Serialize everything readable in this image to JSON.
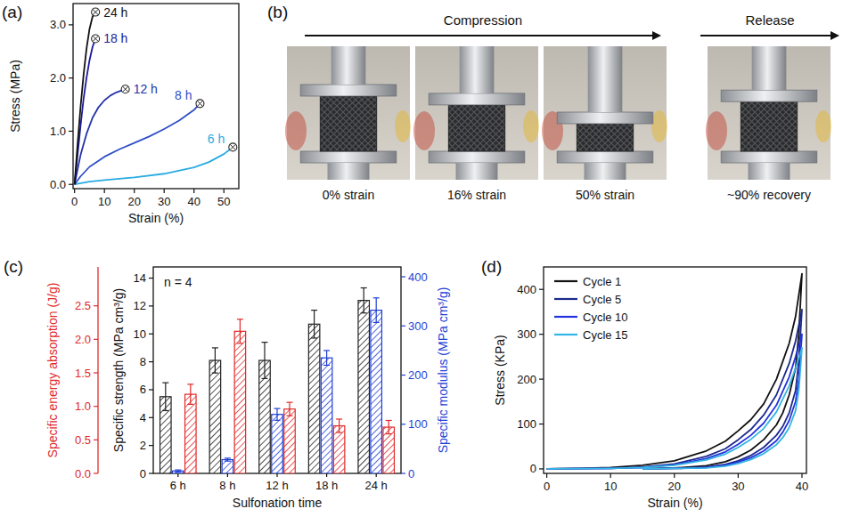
{
  "chart_data": [
    {
      "panel": "(a)",
      "type": "line",
      "x_label": "Strain (%)",
      "y_label": "Stress (MPa)",
      "xlim": [
        -0.5,
        55
      ],
      "xticks": [
        0,
        10,
        20,
        30,
        40,
        50
      ],
      "ylim": [
        -0.08,
        3.4
      ],
      "yticks": [
        {
          "value": 0,
          "label": "0.0"
        },
        {
          "value": 1,
          "label": "1.0"
        },
        {
          "value": 2,
          "label": "2.0"
        },
        {
          "value": 3,
          "label": "3.0"
        }
      ],
      "grid": false,
      "marker": "circle-x",
      "series": [
        {
          "name": "6 h",
          "color": "#29abe2",
          "x": [
            0,
            5,
            10,
            20,
            30,
            40,
            45,
            50,
            53
          ],
          "values": [
            0,
            0.05,
            0.08,
            0.13,
            0.2,
            0.32,
            0.42,
            0.57,
            0.7
          ]
        },
        {
          "name": "8 h",
          "color": "#2f4fc8",
          "x": [
            0,
            2,
            5,
            10,
            15,
            20,
            25,
            30,
            35,
            40,
            42
          ],
          "values": [
            0,
            0.15,
            0.33,
            0.52,
            0.66,
            0.78,
            0.9,
            1.04,
            1.2,
            1.4,
            1.52
          ]
        },
        {
          "name": "12 h",
          "color": "#2433a8",
          "x": [
            0,
            1,
            2,
            4,
            6,
            8,
            10,
            12,
            14,
            16,
            17
          ],
          "values": [
            0,
            0.28,
            0.55,
            0.95,
            1.25,
            1.45,
            1.58,
            1.67,
            1.73,
            1.77,
            1.79
          ]
        },
        {
          "name": "18 h",
          "color": "#1a1a9a",
          "x": [
            0,
            1,
            2,
            3,
            4,
            5,
            6,
            7
          ],
          "values": [
            0,
            0.55,
            1.1,
            1.6,
            2.0,
            2.33,
            2.58,
            2.74
          ]
        },
        {
          "name": "24 h",
          "color": "#111111",
          "x": [
            0,
            1,
            2,
            3,
            4,
            5,
            6,
            7
          ],
          "values": [
            0,
            0.75,
            1.45,
            2.05,
            2.55,
            2.92,
            3.15,
            3.24
          ]
        }
      ]
    },
    {
      "panel": "(c)",
      "type": "bar",
      "x_label": "Sulfonation time",
      "annotation": "n = 4",
      "categories": [
        "6 h",
        "8 h",
        "12 h",
        "18 h",
        "24 h"
      ],
      "y_label": "Specific strength (MPa cm³/g)",
      "ylim": [
        0,
        14.8
      ],
      "yticks": [
        0,
        2,
        4,
        6,
        8,
        10,
        12,
        14
      ],
      "y2_label": "Specific modulus (MPa cm³/g)",
      "y2lim": [
        0,
        420
      ],
      "y2ticks": [
        0,
        100,
        200,
        300,
        400
      ],
      "y3_label": "Specific energy absorption (J/g)",
      "y3lim": [
        0,
        3.08
      ],
      "y3ticks": [
        {
          "value": 0,
          "label": "0.0"
        },
        {
          "value": 0.5,
          "label": "0.5"
        },
        {
          "value": 1,
          "label": "1.0"
        },
        {
          "value": 1.5,
          "label": "1.5"
        },
        {
          "value": 2,
          "label": "2.0"
        },
        {
          "value": 2.5,
          "label": "2.5"
        }
      ],
      "grid": false,
      "series": [
        {
          "axis": "y",
          "color": "#222222",
          "values": [
            5.5,
            8.1,
            8.1,
            10.7,
            12.4
          ],
          "errors": [
            1.0,
            0.9,
            1.3,
            1.0,
            0.9
          ]
        },
        {
          "axis": "y2",
          "color": "#1f3fd6",
          "values": [
            5,
            28,
            120,
            235,
            332
          ],
          "errors": [
            2,
            3,
            12,
            15,
            25
          ]
        },
        {
          "axis": "y3",
          "color": "#e02a2a",
          "values": [
            1.18,
            2.12,
            0.96,
            0.71,
            0.69
          ],
          "errors": [
            0.15,
            0.18,
            0.1,
            0.1,
            0.1
          ]
        }
      ]
    },
    {
      "panel": "(d)",
      "type": "line",
      "x_label": "Strain (%)",
      "y_label": "Stress (KPa)",
      "xlim": [
        -0.5,
        40.7
      ],
      "xticks": [
        0,
        10,
        20,
        30,
        40
      ],
      "ylim": [
        -10,
        450
      ],
      "yticks": [
        0,
        100,
        200,
        300,
        400
      ],
      "grid": false,
      "legend": "upper left",
      "series": [
        {
          "name": "Cycle 1",
          "color": "#111111",
          "x": [
            0,
            5,
            10,
            15,
            20,
            25,
            28,
            30,
            32,
            34,
            36,
            38,
            39,
            40,
            39.5,
            39,
            38,
            37,
            36,
            34,
            32,
            30,
            28,
            25,
            20,
            15
          ],
          "values": [
            0,
            1,
            3,
            8,
            18,
            40,
            62,
            85,
            110,
            145,
            200,
            280,
            340,
            435,
            300,
            225,
            165,
            125,
            98,
            65,
            42,
            27,
            16,
            7,
            2,
            0
          ]
        },
        {
          "name": "Cycle 5",
          "color": "#1c2a8c",
          "x": [
            0,
            10,
            15,
            20,
            25,
            28,
            30,
            32,
            34,
            36,
            38,
            39,
            40,
            39.5,
            39,
            38,
            37,
            36,
            34,
            32,
            30,
            28,
            25,
            20,
            15
          ],
          "values": [
            0,
            1,
            4,
            11,
            28,
            45,
            65,
            88,
            120,
            165,
            235,
            285,
            355,
            240,
            175,
            125,
            95,
            75,
            48,
            30,
            18,
            10,
            4,
            1,
            0
          ]
        },
        {
          "name": "Cycle 10",
          "color": "#2233dd",
          "x": [
            0,
            10,
            15,
            20,
            25,
            28,
            30,
            32,
            34,
            36,
            38,
            39,
            40,
            39.5,
            39,
            38,
            37,
            36,
            34,
            32,
            30,
            28,
            25,
            20,
            15
          ],
          "values": [
            0,
            1,
            3,
            9,
            23,
            38,
            55,
            75,
            102,
            142,
            205,
            250,
            300,
            200,
            150,
            108,
            82,
            63,
            40,
            25,
            15,
            8,
            3,
            1,
            0
          ]
        },
        {
          "name": "Cycle 15",
          "color": "#33b5e5",
          "x": [
            0,
            10,
            15,
            20,
            25,
            28,
            30,
            32,
            34,
            36,
            38,
            39,
            40,
            39.5,
            39,
            38,
            37,
            36,
            34,
            32,
            30,
            28,
            25,
            20,
            15
          ],
          "values": [
            0,
            1,
            3,
            8,
            20,
            33,
            48,
            66,
            90,
            127,
            185,
            225,
            270,
            175,
            130,
            92,
            70,
            54,
            34,
            21,
            12,
            6,
            2,
            1,
            0
          ]
        }
      ]
    }
  ],
  "photo_panel": {
    "panel": "(b)",
    "arrows": [
      {
        "label": "Compression"
      },
      {
        "label": "Release"
      }
    ],
    "frames": [
      {
        "label": "0% strain",
        "strain": 0
      },
      {
        "label": "16% strain",
        "strain": 16
      },
      {
        "label": "50% strain",
        "strain": 50
      },
      {
        "label": "~90% recovery",
        "recovery": 90
      }
    ]
  }
}
